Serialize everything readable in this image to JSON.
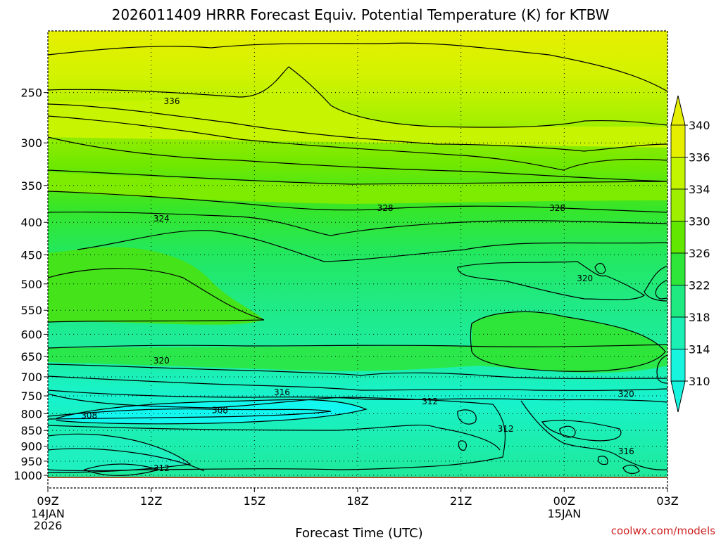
{
  "chart_data": {
    "type": "contour",
    "title": "2026011409 HRRR Forecast Equiv. Potential Temperature (K) for KTBW",
    "xlabel": "Forecast Time (UTC)",
    "credit": "coolwx.com/models",
    "y_axis": {
      "scale": "pressure",
      "range": [
        1000,
        200
      ],
      "ticks": [
        "250",
        "300",
        "350",
        "400",
        "450",
        "500",
        "550",
        "600",
        "650",
        "700",
        "750",
        "800",
        "850",
        "900",
        "950",
        "1000"
      ]
    },
    "x_axis": {
      "range": [
        "09Z 14JAN 2026",
        "03Z 15JAN"
      ],
      "ticks": [
        {
          "label": "09Z",
          "sub": [
            "14JAN",
            "2026"
          ]
        },
        {
          "label": "12Z",
          "sub": []
        },
        {
          "label": "15Z",
          "sub": []
        },
        {
          "label": "18Z",
          "sub": []
        },
        {
          "label": "21Z",
          "sub": []
        },
        {
          "label": "00Z",
          "sub": [
            "15JAN"
          ]
        },
        {
          "label": "03Z",
          "sub": []
        }
      ]
    },
    "grid": true,
    "colorbar": {
      "ticks": [
        "340",
        "336",
        "334",
        "330",
        "326",
        "322",
        "318",
        "314",
        "310"
      ],
      "colors": [
        "#e6ef00",
        "#c3f500",
        "#9ef000",
        "#62e800",
        "#2ee63a",
        "#1fea82",
        "#1befb4",
        "#17f5df"
      ]
    },
    "contour_labels": [
      {
        "text": "336",
        "t": 3.6,
        "p": 258
      },
      {
        "text": "328",
        "t": 9.8,
        "p": 380
      },
      {
        "text": "328",
        "t": 14.8,
        "p": 380
      },
      {
        "text": "324",
        "t": 3.3,
        "p": 395
      },
      {
        "text": "320",
        "t": 15.6,
        "p": 490
      },
      {
        "text": "320",
        "t": 3.3,
        "p": 660
      },
      {
        "text": "316",
        "t": 6.8,
        "p": 740
      },
      {
        "text": "320",
        "t": 16.8,
        "p": 745
      },
      {
        "text": "312",
        "t": 11.1,
        "p": 765
      },
      {
        "text": "308",
        "t": 1.2,
        "p": 805
      },
      {
        "text": "308",
        "t": 5.0,
        "p": 790
      },
      {
        "text": "312",
        "t": 13.3,
        "p": 845
      },
      {
        "text": "316",
        "t": 16.8,
        "p": 917
      },
      {
        "text": "312",
        "t": 3.3,
        "p": 975
      }
    ],
    "ground_color": "#a0522d"
  }
}
